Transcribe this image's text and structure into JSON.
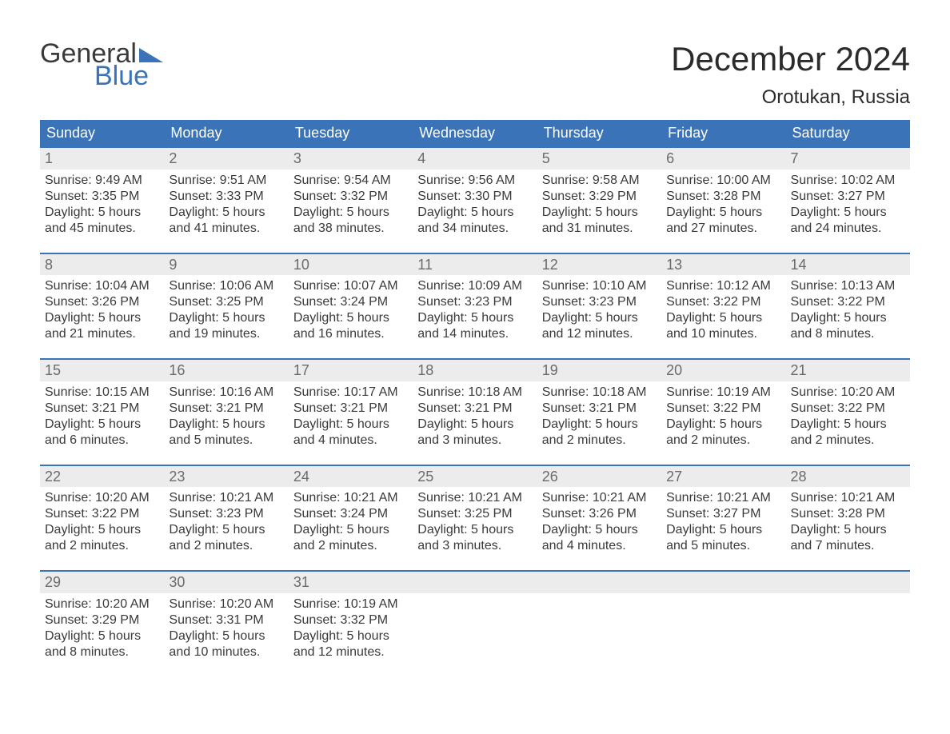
{
  "logo": {
    "word1": "General",
    "word2": "Blue"
  },
  "title": "December 2024",
  "location": "Orotukan, Russia",
  "colors": {
    "header_bg": "#3a73b8",
    "header_text": "#ffffff",
    "week_border": "#3a73b8",
    "daynum_bg": "#ececec",
    "daynum_text": "#6b6b6b",
    "body_text": "#3a3a3a",
    "logo_blue": "#3a73b8",
    "page_bg": "#ffffff"
  },
  "weekdays": [
    "Sunday",
    "Monday",
    "Tuesday",
    "Wednesday",
    "Thursday",
    "Friday",
    "Saturday"
  ],
  "weeks": [
    [
      {
        "n": "1",
        "sr": "9:49 AM",
        "ss": "3:35 PM",
        "h": "5",
        "m": "45"
      },
      {
        "n": "2",
        "sr": "9:51 AM",
        "ss": "3:33 PM",
        "h": "5",
        "m": "41"
      },
      {
        "n": "3",
        "sr": "9:54 AM",
        "ss": "3:32 PM",
        "h": "5",
        "m": "38"
      },
      {
        "n": "4",
        "sr": "9:56 AM",
        "ss": "3:30 PM",
        "h": "5",
        "m": "34"
      },
      {
        "n": "5",
        "sr": "9:58 AM",
        "ss": "3:29 PM",
        "h": "5",
        "m": "31"
      },
      {
        "n": "6",
        "sr": "10:00 AM",
        "ss": "3:28 PM",
        "h": "5",
        "m": "27"
      },
      {
        "n": "7",
        "sr": "10:02 AM",
        "ss": "3:27 PM",
        "h": "5",
        "m": "24"
      }
    ],
    [
      {
        "n": "8",
        "sr": "10:04 AM",
        "ss": "3:26 PM",
        "h": "5",
        "m": "21"
      },
      {
        "n": "9",
        "sr": "10:06 AM",
        "ss": "3:25 PM",
        "h": "5",
        "m": "19"
      },
      {
        "n": "10",
        "sr": "10:07 AM",
        "ss": "3:24 PM",
        "h": "5",
        "m": "16"
      },
      {
        "n": "11",
        "sr": "10:09 AM",
        "ss": "3:23 PM",
        "h": "5",
        "m": "14"
      },
      {
        "n": "12",
        "sr": "10:10 AM",
        "ss": "3:23 PM",
        "h": "5",
        "m": "12"
      },
      {
        "n": "13",
        "sr": "10:12 AM",
        "ss": "3:22 PM",
        "h": "5",
        "m": "10"
      },
      {
        "n": "14",
        "sr": "10:13 AM",
        "ss": "3:22 PM",
        "h": "5",
        "m": "8"
      }
    ],
    [
      {
        "n": "15",
        "sr": "10:15 AM",
        "ss": "3:21 PM",
        "h": "5",
        "m": "6"
      },
      {
        "n": "16",
        "sr": "10:16 AM",
        "ss": "3:21 PM",
        "h": "5",
        "m": "5"
      },
      {
        "n": "17",
        "sr": "10:17 AM",
        "ss": "3:21 PM",
        "h": "5",
        "m": "4"
      },
      {
        "n": "18",
        "sr": "10:18 AM",
        "ss": "3:21 PM",
        "h": "5",
        "m": "3"
      },
      {
        "n": "19",
        "sr": "10:18 AM",
        "ss": "3:21 PM",
        "h": "5",
        "m": "2"
      },
      {
        "n": "20",
        "sr": "10:19 AM",
        "ss": "3:22 PM",
        "h": "5",
        "m": "2"
      },
      {
        "n": "21",
        "sr": "10:20 AM",
        "ss": "3:22 PM",
        "h": "5",
        "m": "2"
      }
    ],
    [
      {
        "n": "22",
        "sr": "10:20 AM",
        "ss": "3:22 PM",
        "h": "5",
        "m": "2"
      },
      {
        "n": "23",
        "sr": "10:21 AM",
        "ss": "3:23 PM",
        "h": "5",
        "m": "2"
      },
      {
        "n": "24",
        "sr": "10:21 AM",
        "ss": "3:24 PM",
        "h": "5",
        "m": "2"
      },
      {
        "n": "25",
        "sr": "10:21 AM",
        "ss": "3:25 PM",
        "h": "5",
        "m": "3"
      },
      {
        "n": "26",
        "sr": "10:21 AM",
        "ss": "3:26 PM",
        "h": "5",
        "m": "4"
      },
      {
        "n": "27",
        "sr": "10:21 AM",
        "ss": "3:27 PM",
        "h": "5",
        "m": "5"
      },
      {
        "n": "28",
        "sr": "10:21 AM",
        "ss": "3:28 PM",
        "h": "5",
        "m": "7"
      }
    ],
    [
      {
        "n": "29",
        "sr": "10:20 AM",
        "ss": "3:29 PM",
        "h": "5",
        "m": "8"
      },
      {
        "n": "30",
        "sr": "10:20 AM",
        "ss": "3:31 PM",
        "h": "5",
        "m": "10"
      },
      {
        "n": "31",
        "sr": "10:19 AM",
        "ss": "3:32 PM",
        "h": "5",
        "m": "12"
      },
      null,
      null,
      null,
      null
    ]
  ],
  "labels": {
    "sunrise": "Sunrise:",
    "sunset": "Sunset:",
    "daylight_prefix": "Daylight:",
    "hours_word": "hours",
    "and_word": "and",
    "minutes_word": "minutes."
  }
}
